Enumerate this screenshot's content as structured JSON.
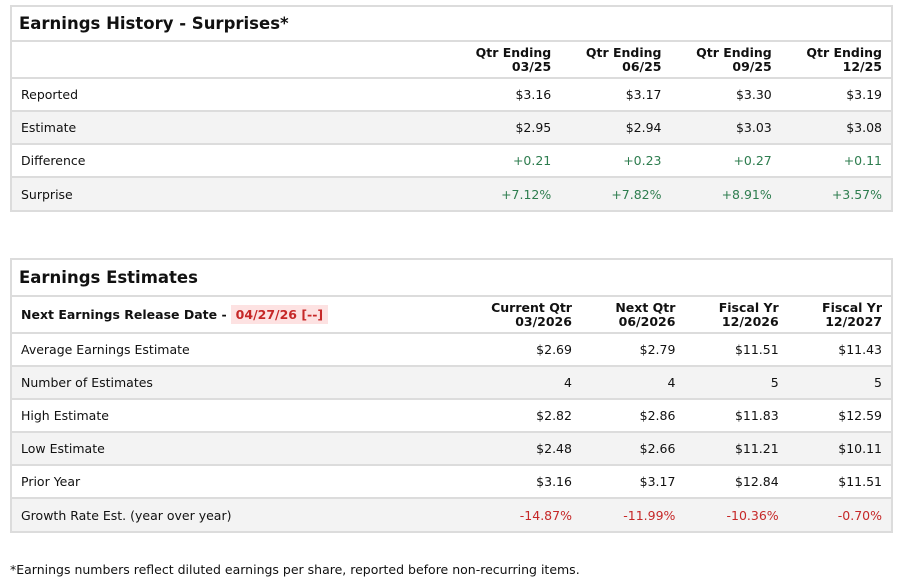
{
  "history": {
    "title": "Earnings History - Surprises*",
    "columns": [
      [
        "Qtr Ending",
        "03/25"
      ],
      [
        "Qtr Ending",
        "06/25"
      ],
      [
        "Qtr Ending",
        "09/25"
      ],
      [
        "Qtr Ending",
        "12/25"
      ]
    ],
    "rows": [
      {
        "label": "Reported",
        "values": [
          "$3.16",
          "$3.17",
          "$3.30",
          "$3.19"
        ]
      },
      {
        "label": "Estimate",
        "values": [
          "$2.95",
          "$2.94",
          "$3.03",
          "$3.08"
        ]
      },
      {
        "label": "Difference",
        "values": [
          "+0.21",
          "+0.23",
          "+0.27",
          "+0.11"
        ]
      },
      {
        "label": "Surprise",
        "values": [
          "+7.12%",
          "+7.82%",
          "+8.91%",
          "+3.57%"
        ]
      }
    ]
  },
  "estimates": {
    "title": "Earnings Estimates",
    "release_label": "Next Earnings Release Date -",
    "release_date": "04/27/26 [--]",
    "columns": [
      [
        "Current Qtr",
        "03/2026"
      ],
      [
        "Next Qtr",
        "06/2026"
      ],
      [
        "Fiscal Yr",
        "12/2026"
      ],
      [
        "Fiscal Yr",
        "12/2027"
      ]
    ],
    "rows": [
      {
        "label": "Average Earnings Estimate",
        "values": [
          "$2.69",
          "$2.79",
          "$11.51",
          "$11.43"
        ]
      },
      {
        "label": "Number of Estimates",
        "values": [
          "4",
          "4",
          "5",
          "5"
        ]
      },
      {
        "label": "High Estimate",
        "values": [
          "$2.82",
          "$2.86",
          "$11.83",
          "$12.59"
        ]
      },
      {
        "label": "Low Estimate",
        "values": [
          "$2.48",
          "$2.66",
          "$11.21",
          "$10.11"
        ]
      },
      {
        "label": "Prior Year",
        "values": [
          "$3.16",
          "$3.17",
          "$12.84",
          "$11.51"
        ]
      },
      {
        "label": "Growth Rate Est. (year over year)",
        "values": [
          "-14.87%",
          "-11.99%",
          "-10.36%",
          "-0.70%"
        ]
      }
    ]
  },
  "footnote": "*Earnings numbers reflect diluted earnings per share, reported before non-recurring items.",
  "colors": {
    "positive": "#2e7d4f",
    "negative": "#c62828",
    "release_bg": "#fde2e2"
  }
}
